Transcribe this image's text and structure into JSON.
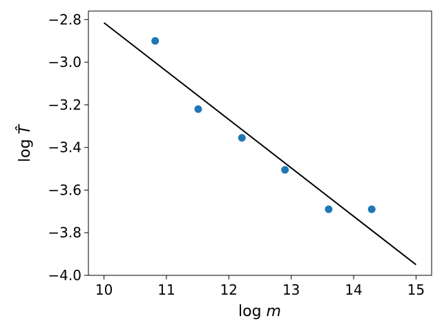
{
  "chart_data": {
    "type": "scatter",
    "xlabel": "log m",
    "ylabel": "log T̂",
    "xlim": [
      9.75,
      15.25
    ],
    "ylim": [
      -4.0,
      -2.76
    ],
    "xticks": [
      "10",
      "11",
      "12",
      "13",
      "14",
      "15"
    ],
    "yticks": [
      "−2.8",
      "−3.0",
      "−3.2",
      "−3.4",
      "−3.6",
      "−3.8",
      "−4.0"
    ],
    "grid": false,
    "series": [
      {
        "kind": "points",
        "color": "#1f77b4",
        "x": [
          10.82,
          11.51,
          12.21,
          12.9,
          13.6,
          14.29
        ],
        "y": [
          -2.9,
          -3.22,
          -3.355,
          -3.505,
          -3.69,
          -3.69
        ]
      },
      {
        "kind": "line",
        "color": "#000000",
        "x": [
          10.0,
          15.0
        ],
        "y": [
          -2.815,
          -3.95
        ]
      }
    ]
  }
}
